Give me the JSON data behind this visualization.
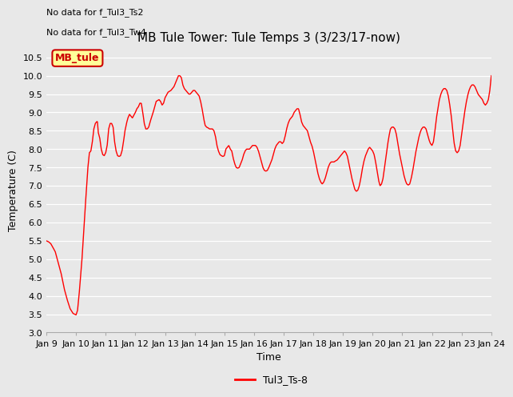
{
  "title": "MB Tule Tower: Tule Temps 3 (3/23/17-now)",
  "xlabel": "Time",
  "ylabel": "Temperature (C)",
  "no_data_text1": "No data for f_Tul3_Ts2",
  "no_data_text2": "No data for f_Tul3_Tw4",
  "watermark_text": "MB_tule",
  "legend_label": "Tul3_Ts-8",
  "line_color": "#ff0000",
  "bg_color": "#e8e8e8",
  "ylim": [
    3.0,
    10.75
  ],
  "yticks": [
    3.0,
    3.5,
    4.0,
    4.5,
    5.0,
    5.5,
    6.0,
    6.5,
    7.0,
    7.5,
    8.0,
    8.5,
    9.0,
    9.5,
    10.0,
    10.5
  ],
  "xtick_labels": [
    "Jan 9",
    "Jan 10",
    "Jan 11",
    "Jan 12",
    "Jan 13",
    "Jan 14",
    "Jan 15",
    "Jan 16",
    "Jan 17",
    "Jan 18",
    "Jan 19",
    "Jan 20",
    "Jan 21",
    "Jan 22",
    "Jan 23",
    "Jan 24"
  ],
  "watermark_box_color": "#ffff99",
  "watermark_border_color": "#cc0000",
  "title_fontsize": 11,
  "axis_label_fontsize": 9,
  "tick_fontsize": 8,
  "no_data_fontsize": 8,
  "watermark_fontsize": 9,
  "legend_fontsize": 9,
  "keypoints": [
    [
      0.0,
      5.5
    ],
    [
      0.08,
      5.47
    ],
    [
      0.15,
      5.42
    ],
    [
      0.2,
      5.35
    ],
    [
      0.3,
      5.2
    ],
    [
      0.4,
      4.9
    ],
    [
      0.5,
      4.6
    ],
    [
      0.6,
      4.2
    ],
    [
      0.7,
      3.9
    ],
    [
      0.8,
      3.65
    ],
    [
      0.9,
      3.52
    ],
    [
      1.0,
      3.48
    ],
    [
      1.05,
      3.6
    ],
    [
      1.1,
      4.0
    ],
    [
      1.15,
      4.5
    ],
    [
      1.2,
      5.0
    ],
    [
      1.3,
      6.3
    ],
    [
      1.4,
      7.5
    ],
    [
      1.45,
      7.9
    ],
    [
      1.5,
      7.95
    ],
    [
      1.55,
      8.2
    ],
    [
      1.6,
      8.55
    ],
    [
      1.65,
      8.7
    ],
    [
      1.7,
      8.75
    ],
    [
      1.72,
      8.75
    ],
    [
      1.75,
      8.45
    ],
    [
      1.8,
      8.3
    ],
    [
      1.85,
      8.0
    ],
    [
      1.9,
      7.85
    ],
    [
      1.95,
      7.82
    ],
    [
      2.0,
      7.9
    ],
    [
      2.05,
      8.1
    ],
    [
      2.1,
      8.55
    ],
    [
      2.15,
      8.7
    ],
    [
      2.2,
      8.7
    ],
    [
      2.25,
      8.6
    ],
    [
      2.3,
      8.2
    ],
    [
      2.35,
      7.95
    ],
    [
      2.4,
      7.82
    ],
    [
      2.45,
      7.8
    ],
    [
      2.5,
      7.82
    ],
    [
      2.55,
      7.95
    ],
    [
      2.6,
      8.2
    ],
    [
      2.65,
      8.5
    ],
    [
      2.7,
      8.7
    ],
    [
      2.75,
      8.85
    ],
    [
      2.8,
      8.95
    ],
    [
      2.9,
      8.85
    ],
    [
      3.0,
      9.0
    ],
    [
      3.05,
      9.1
    ],
    [
      3.1,
      9.15
    ],
    [
      3.15,
      9.25
    ],
    [
      3.2,
      9.25
    ],
    [
      3.25,
      9.0
    ],
    [
      3.3,
      8.7
    ],
    [
      3.35,
      8.55
    ],
    [
      3.4,
      8.55
    ],
    [
      3.45,
      8.6
    ],
    [
      3.5,
      8.75
    ],
    [
      3.6,
      9.0
    ],
    [
      3.7,
      9.3
    ],
    [
      3.8,
      9.35
    ],
    [
      3.85,
      9.3
    ],
    [
      3.9,
      9.2
    ],
    [
      3.95,
      9.25
    ],
    [
      4.0,
      9.4
    ],
    [
      4.1,
      9.55
    ],
    [
      4.2,
      9.6
    ],
    [
      4.3,
      9.7
    ],
    [
      4.35,
      9.8
    ],
    [
      4.4,
      9.9
    ],
    [
      4.45,
      10.0
    ],
    [
      4.5,
      10.0
    ],
    [
      4.55,
      9.95
    ],
    [
      4.6,
      9.75
    ],
    [
      4.65,
      9.65
    ],
    [
      4.7,
      9.6
    ],
    [
      4.75,
      9.55
    ],
    [
      4.8,
      9.5
    ],
    [
      4.85,
      9.5
    ],
    [
      4.9,
      9.55
    ],
    [
      4.95,
      9.6
    ],
    [
      5.0,
      9.6
    ],
    [
      5.05,
      9.55
    ],
    [
      5.1,
      9.5
    ],
    [
      5.15,
      9.45
    ],
    [
      5.2,
      9.3
    ],
    [
      5.25,
      9.1
    ],
    [
      5.3,
      8.85
    ],
    [
      5.35,
      8.65
    ],
    [
      5.4,
      8.6
    ],
    [
      5.45,
      8.58
    ],
    [
      5.5,
      8.55
    ],
    [
      5.55,
      8.55
    ],
    [
      5.6,
      8.55
    ],
    [
      5.65,
      8.5
    ],
    [
      5.7,
      8.35
    ],
    [
      5.75,
      8.1
    ],
    [
      5.8,
      7.95
    ],
    [
      5.85,
      7.85
    ],
    [
      5.9,
      7.82
    ],
    [
      5.95,
      7.8
    ],
    [
      6.0,
      7.82
    ],
    [
      6.05,
      8.0
    ],
    [
      6.1,
      8.05
    ],
    [
      6.15,
      8.1
    ],
    [
      6.2,
      8.0
    ],
    [
      6.25,
      7.95
    ],
    [
      6.3,
      7.75
    ],
    [
      6.35,
      7.6
    ],
    [
      6.4,
      7.5
    ],
    [
      6.45,
      7.48
    ],
    [
      6.5,
      7.5
    ],
    [
      6.55,
      7.6
    ],
    [
      6.6,
      7.7
    ],
    [
      6.65,
      7.85
    ],
    [
      6.7,
      7.95
    ],
    [
      6.75,
      8.0
    ],
    [
      6.8,
      8.0
    ],
    [
      6.85,
      8.0
    ],
    [
      6.9,
      8.05
    ],
    [
      6.95,
      8.1
    ],
    [
      7.0,
      8.1
    ],
    [
      7.05,
      8.1
    ],
    [
      7.1,
      8.05
    ],
    [
      7.15,
      7.95
    ],
    [
      7.2,
      7.8
    ],
    [
      7.25,
      7.65
    ],
    [
      7.3,
      7.5
    ],
    [
      7.35,
      7.42
    ],
    [
      7.4,
      7.4
    ],
    [
      7.45,
      7.42
    ],
    [
      7.5,
      7.5
    ],
    [
      7.55,
      7.6
    ],
    [
      7.6,
      7.7
    ],
    [
      7.7,
      8.0
    ],
    [
      7.75,
      8.1
    ],
    [
      7.8,
      8.15
    ],
    [
      7.85,
      8.2
    ],
    [
      7.9,
      8.2
    ],
    [
      7.95,
      8.15
    ],
    [
      8.0,
      8.2
    ],
    [
      8.05,
      8.35
    ],
    [
      8.1,
      8.55
    ],
    [
      8.15,
      8.7
    ],
    [
      8.2,
      8.8
    ],
    [
      8.25,
      8.85
    ],
    [
      8.3,
      8.9
    ],
    [
      8.35,
      9.0
    ],
    [
      8.4,
      9.05
    ],
    [
      8.45,
      9.1
    ],
    [
      8.5,
      9.1
    ],
    [
      8.55,
      8.95
    ],
    [
      8.6,
      8.75
    ],
    [
      8.65,
      8.65
    ],
    [
      8.7,
      8.6
    ],
    [
      8.75,
      8.55
    ],
    [
      8.8,
      8.5
    ],
    [
      8.85,
      8.35
    ],
    [
      8.9,
      8.2
    ],
    [
      8.95,
      8.1
    ],
    [
      9.0,
      7.95
    ],
    [
      9.05,
      7.75
    ],
    [
      9.1,
      7.55
    ],
    [
      9.15,
      7.35
    ],
    [
      9.2,
      7.2
    ],
    [
      9.25,
      7.1
    ],
    [
      9.3,
      7.05
    ],
    [
      9.35,
      7.1
    ],
    [
      9.4,
      7.2
    ],
    [
      9.45,
      7.35
    ],
    [
      9.5,
      7.5
    ],
    [
      9.55,
      7.6
    ],
    [
      9.6,
      7.65
    ],
    [
      9.65,
      7.65
    ],
    [
      9.7,
      7.65
    ],
    [
      9.75,
      7.68
    ],
    [
      9.8,
      7.7
    ],
    [
      9.85,
      7.75
    ],
    [
      9.9,
      7.8
    ],
    [
      9.95,
      7.85
    ],
    [
      10.0,
      7.9
    ],
    [
      10.05,
      7.95
    ],
    [
      10.1,
      7.9
    ],
    [
      10.15,
      7.8
    ],
    [
      10.2,
      7.6
    ],
    [
      10.25,
      7.4
    ],
    [
      10.3,
      7.2
    ],
    [
      10.35,
      7.05
    ],
    [
      10.4,
      6.9
    ],
    [
      10.45,
      6.85
    ],
    [
      10.5,
      6.88
    ],
    [
      10.55,
      7.0
    ],
    [
      10.6,
      7.2
    ],
    [
      10.65,
      7.45
    ],
    [
      10.7,
      7.65
    ],
    [
      10.75,
      7.8
    ],
    [
      10.8,
      7.9
    ],
    [
      10.85,
      8.0
    ],
    [
      10.9,
      8.05
    ],
    [
      10.95,
      8.0
    ],
    [
      11.0,
      7.95
    ],
    [
      11.05,
      7.85
    ],
    [
      11.1,
      7.65
    ],
    [
      11.15,
      7.4
    ],
    [
      11.2,
      7.15
    ],
    [
      11.25,
      7.0
    ],
    [
      11.3,
      7.05
    ],
    [
      11.35,
      7.2
    ],
    [
      11.4,
      7.5
    ],
    [
      11.45,
      7.8
    ],
    [
      11.5,
      8.1
    ],
    [
      11.55,
      8.35
    ],
    [
      11.6,
      8.55
    ],
    [
      11.65,
      8.6
    ],
    [
      11.7,
      8.6
    ],
    [
      11.75,
      8.55
    ],
    [
      11.8,
      8.4
    ],
    [
      11.85,
      8.15
    ],
    [
      11.9,
      7.9
    ],
    [
      11.95,
      7.7
    ],
    [
      12.0,
      7.5
    ],
    [
      12.05,
      7.3
    ],
    [
      12.1,
      7.15
    ],
    [
      12.15,
      7.05
    ],
    [
      12.2,
      7.02
    ],
    [
      12.25,
      7.05
    ],
    [
      12.3,
      7.2
    ],
    [
      12.35,
      7.4
    ],
    [
      12.4,
      7.65
    ],
    [
      12.45,
      7.9
    ],
    [
      12.5,
      8.1
    ],
    [
      12.55,
      8.3
    ],
    [
      12.6,
      8.45
    ],
    [
      12.65,
      8.55
    ],
    [
      12.7,
      8.6
    ],
    [
      12.75,
      8.6
    ],
    [
      12.8,
      8.55
    ],
    [
      12.85,
      8.4
    ],
    [
      12.9,
      8.25
    ],
    [
      12.95,
      8.15
    ],
    [
      13.0,
      8.1
    ],
    [
      13.05,
      8.2
    ],
    [
      13.1,
      8.5
    ],
    [
      13.15,
      8.85
    ],
    [
      13.2,
      9.1
    ],
    [
      13.25,
      9.35
    ],
    [
      13.3,
      9.5
    ],
    [
      13.35,
      9.6
    ],
    [
      13.4,
      9.65
    ],
    [
      13.45,
      9.65
    ],
    [
      13.5,
      9.6
    ],
    [
      13.55,
      9.45
    ],
    [
      13.6,
      9.2
    ],
    [
      13.65,
      8.9
    ],
    [
      13.7,
      8.5
    ],
    [
      13.75,
      8.15
    ],
    [
      13.8,
      7.95
    ],
    [
      13.85,
      7.9
    ],
    [
      13.9,
      7.95
    ],
    [
      13.95,
      8.1
    ],
    [
      14.0,
      8.4
    ],
    [
      14.05,
      8.7
    ],
    [
      14.1,
      9.0
    ],
    [
      14.15,
      9.25
    ],
    [
      14.2,
      9.45
    ],
    [
      14.25,
      9.6
    ],
    [
      14.3,
      9.7
    ],
    [
      14.35,
      9.75
    ],
    [
      14.4,
      9.75
    ],
    [
      14.45,
      9.7
    ],
    [
      14.5,
      9.6
    ],
    [
      14.55,
      9.5
    ],
    [
      14.6,
      9.45
    ],
    [
      14.65,
      9.4
    ],
    [
      14.7,
      9.35
    ],
    [
      14.75,
      9.25
    ],
    [
      14.8,
      9.2
    ],
    [
      14.85,
      9.25
    ],
    [
      14.9,
      9.35
    ],
    [
      14.95,
      9.6
    ],
    [
      15.0,
      10.0
    ]
  ]
}
